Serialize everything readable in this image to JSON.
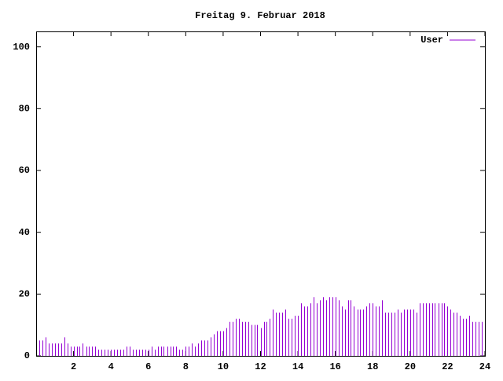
{
  "chart_data": {
    "type": "impulses",
    "title": "Freitag 9. Februar 2018",
    "series": [
      {
        "name": "User",
        "color": "#9400d3",
        "x": [
          0,
          0.17,
          0.33,
          0.5,
          0.67,
          0.83,
          1,
          1.17,
          1.33,
          1.5,
          1.67,
          1.83,
          2,
          2.17,
          2.33,
          2.5,
          2.67,
          2.83,
          3,
          3.17,
          3.33,
          3.5,
          3.67,
          3.83,
          4,
          4.17,
          4.33,
          4.5,
          4.67,
          4.83,
          5,
          5.17,
          5.33,
          5.5,
          5.67,
          5.83,
          6,
          6.17,
          6.33,
          6.5,
          6.67,
          6.83,
          7,
          7.17,
          7.33,
          7.5,
          7.67,
          7.83,
          8,
          8.17,
          8.33,
          8.5,
          8.67,
          8.83,
          9,
          9.17,
          9.33,
          9.5,
          9.67,
          9.83,
          10,
          10.17,
          10.33,
          10.5,
          10.67,
          10.83,
          11,
          11.17,
          11.33,
          11.5,
          11.67,
          11.83,
          12,
          12.17,
          12.33,
          12.5,
          12.67,
          12.83,
          13,
          13.17,
          13.33,
          13.5,
          13.67,
          13.83,
          14,
          14.17,
          14.33,
          14.5,
          14.67,
          14.83,
          15,
          15.17,
          15.33,
          15.5,
          15.67,
          15.83,
          16,
          16.17,
          16.33,
          16.5,
          16.67,
          16.83,
          17,
          17.17,
          17.33,
          17.5,
          17.67,
          17.83,
          18,
          18.17,
          18.33,
          18.5,
          18.67,
          18.83,
          19,
          19.17,
          19.33,
          19.5,
          19.67,
          19.83,
          20,
          20.17,
          20.33,
          20.5,
          20.67,
          20.83,
          21,
          21.17,
          21.33,
          21.5,
          21.67,
          21.83,
          22,
          22.17,
          22.33,
          22.5,
          22.67,
          22.83,
          23,
          23.17,
          23.33,
          23.5,
          23.67,
          23.83
        ],
        "values": [
          5,
          5,
          5,
          6,
          4,
          4,
          4,
          4,
          4,
          6,
          4,
          3,
          3,
          3,
          3,
          4,
          3,
          3,
          3,
          3,
          2,
          2,
          2,
          2,
          2,
          2,
          2,
          2,
          2,
          3,
          3,
          2,
          2,
          2,
          2,
          2,
          2,
          3,
          2,
          3,
          3,
          3,
          3,
          3,
          3,
          3,
          2,
          2,
          3,
          3,
          4,
          3,
          4,
          5,
          5,
          5,
          6,
          7,
          8,
          8,
          8,
          9,
          11,
          11,
          12,
          12,
          11,
          11,
          11,
          10,
          10,
          10,
          9,
          11,
          11,
          12,
          15,
          14,
          14,
          14,
          15,
          12,
          12,
          13,
          13,
          17,
          16,
          16,
          17,
          19,
          17,
          18,
          19,
          18,
          19,
          19,
          19,
          18,
          16,
          15,
          18,
          18,
          16,
          15,
          15,
          15,
          16,
          17,
          17,
          16,
          16,
          18,
          14,
          14,
          14,
          14,
          15,
          14,
          15,
          15,
          15,
          15,
          14,
          17,
          17,
          17,
          17,
          17,
          17,
          17,
          17,
          17,
          16,
          15,
          14,
          14,
          13,
          12,
          12,
          13,
          11,
          11,
          11,
          11
        ]
      }
    ],
    "xlim": [
      0,
      24
    ],
    "xticks": [
      2,
      4,
      6,
      8,
      10,
      12,
      14,
      16,
      18,
      20,
      22,
      24
    ],
    "ylim": [
      0,
      105
    ],
    "yticks": [
      0,
      20,
      40,
      60,
      80,
      100
    ],
    "legend": "top-right"
  }
}
